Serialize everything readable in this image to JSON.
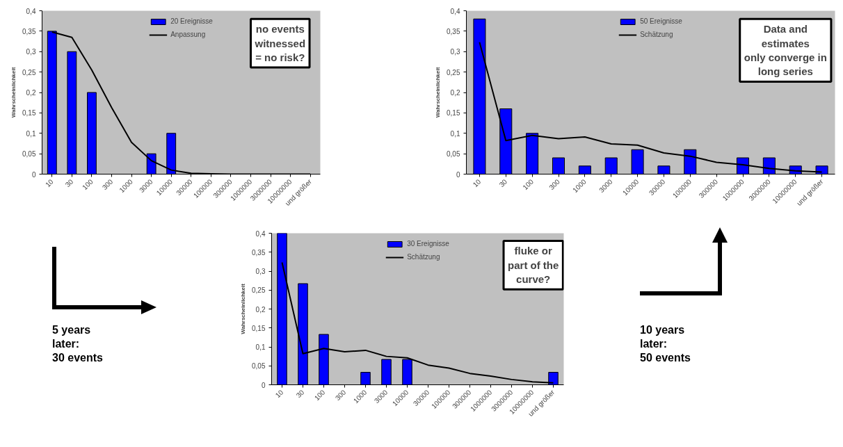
{
  "chart_data": [
    {
      "type": "bar",
      "ylabel": "Wahrscheinlichkeit",
      "categories": [
        "10",
        "30",
        "100",
        "300",
        "1000",
        "3000",
        "10000",
        "30000",
        "100000",
        "300000",
        "1000000",
        "3000000",
        "10000000",
        "und größer"
      ],
      "series": [
        {
          "name": "20 Ereignisse",
          "color": "#0000ff",
          "values": [
            0.35,
            0.3,
            0.2,
            null,
            null,
            0.05,
            0.1,
            null,
            null,
            null,
            null,
            null,
            null,
            null
          ]
        },
        {
          "name": "Anpassung",
          "type": "line",
          "color": "#000000",
          "values": [
            0.348,
            0.335,
            0.255,
            0.163,
            0.078,
            0.033,
            0.01,
            0.002,
            0.001,
            0,
            0,
            0,
            0,
            0
          ]
        }
      ],
      "ylim": [
        0,
        0.4
      ],
      "yticks": [
        0,
        {
          "value": 0.05,
          "label": "0,05"
        },
        {
          "value": 0.1,
          "label": "0,1"
        },
        {
          "value": 0.15,
          "label": "0,15"
        },
        {
          "value": 0.2,
          "label": "0,2"
        },
        {
          "value": 0.25,
          "label": "0,25"
        },
        {
          "value": 0.3,
          "label": "0,3"
        },
        {
          "value": 0.35,
          "label": "0,35"
        },
        {
          "value": 0.4,
          "label": "0,4"
        }
      ],
      "legend": "top",
      "grid": false,
      "annotations": [
        "no events\nwitnessed\n= no risk?"
      ]
    },
    {
      "type": "bar",
      "ylabel": "Wahrscheinlichkeit",
      "categories": [
        "10",
        "30",
        "100",
        "300",
        "1000",
        "3000",
        "10000",
        "30000",
        "100000",
        "300000",
        "1000000",
        "3000000",
        "10000000",
        "und größer"
      ],
      "series": [
        {
          "name": "50 Ereignisse",
          "color": "#0000ff",
          "values": [
            0.38,
            0.16,
            0.1,
            0.04,
            0.02,
            0.04,
            0.06,
            0.02,
            0.06,
            null,
            0.04,
            0.04,
            0.02,
            0.02
          ]
        },
        {
          "name": "Schätzung",
          "type": "line",
          "color": "#000000",
          "values": [
            0.323,
            0.082,
            0.095,
            0.087,
            0.091,
            0.074,
            0.071,
            0.052,
            0.044,
            0.029,
            0.023,
            0.014,
            0.008,
            0.005
          ]
        }
      ],
      "ylim": [
        0,
        0.4
      ],
      "yticks": [
        0,
        {
          "value": 0.05,
          "label": "0,05"
        },
        {
          "value": 0.1,
          "label": "0,1"
        },
        {
          "value": 0.15,
          "label": "0,15"
        },
        {
          "value": 0.2,
          "label": "0,2"
        },
        {
          "value": 0.25,
          "label": "0,25"
        },
        {
          "value": 0.3,
          "label": "0,3"
        },
        {
          "value": 0.35,
          "label": "0,35"
        },
        {
          "value": 0.4,
          "label": "0,4"
        }
      ],
      "legend": "top",
      "grid": false,
      "annotations": [
        "Data and\nestimates\nonly converge in\nlong series"
      ]
    },
    {
      "type": "bar",
      "ylabel": "Wahrscheinlichkeit",
      "categories": [
        "10",
        "30",
        "100",
        "300",
        "1000",
        "3000",
        "10000",
        "30000",
        "100000",
        "300000",
        "1000000",
        "3000000",
        "10000000",
        "und größer"
      ],
      "series": [
        {
          "name": "30 Ereignisse",
          "color": "#0000ff",
          "values": [
            0.4,
            0.267,
            0.133,
            null,
            0.033,
            0.067,
            0.067,
            null,
            null,
            null,
            null,
            null,
            null,
            0.033
          ]
        },
        {
          "name": "Schätzung",
          "type": "line",
          "color": "#000000",
          "values": [
            0.323,
            0.082,
            0.096,
            0.087,
            0.091,
            0.075,
            0.071,
            0.052,
            0.044,
            0.03,
            0.023,
            0.014,
            0.008,
            0.005
          ]
        }
      ],
      "ylim": [
        0,
        0.4
      ],
      "yticks": [
        0,
        {
          "value": 0.05,
          "label": "0,05"
        },
        {
          "value": 0.1,
          "label": "0,1"
        },
        {
          "value": 0.15,
          "label": "0,15"
        },
        {
          "value": 0.2,
          "label": "0,2"
        },
        {
          "value": 0.25,
          "label": "0,25"
        },
        {
          "value": 0.3,
          "label": "0,3"
        },
        {
          "value": 0.35,
          "label": "0,35"
        },
        {
          "value": 0.4,
          "label": "0,4"
        }
      ],
      "legend": "top",
      "grid": false,
      "annotations": [
        "fluke or\npart of the\ncurve?",
        "5 years\nlater:\n30 events",
        "10 years\nlater:\n50 events"
      ]
    }
  ]
}
